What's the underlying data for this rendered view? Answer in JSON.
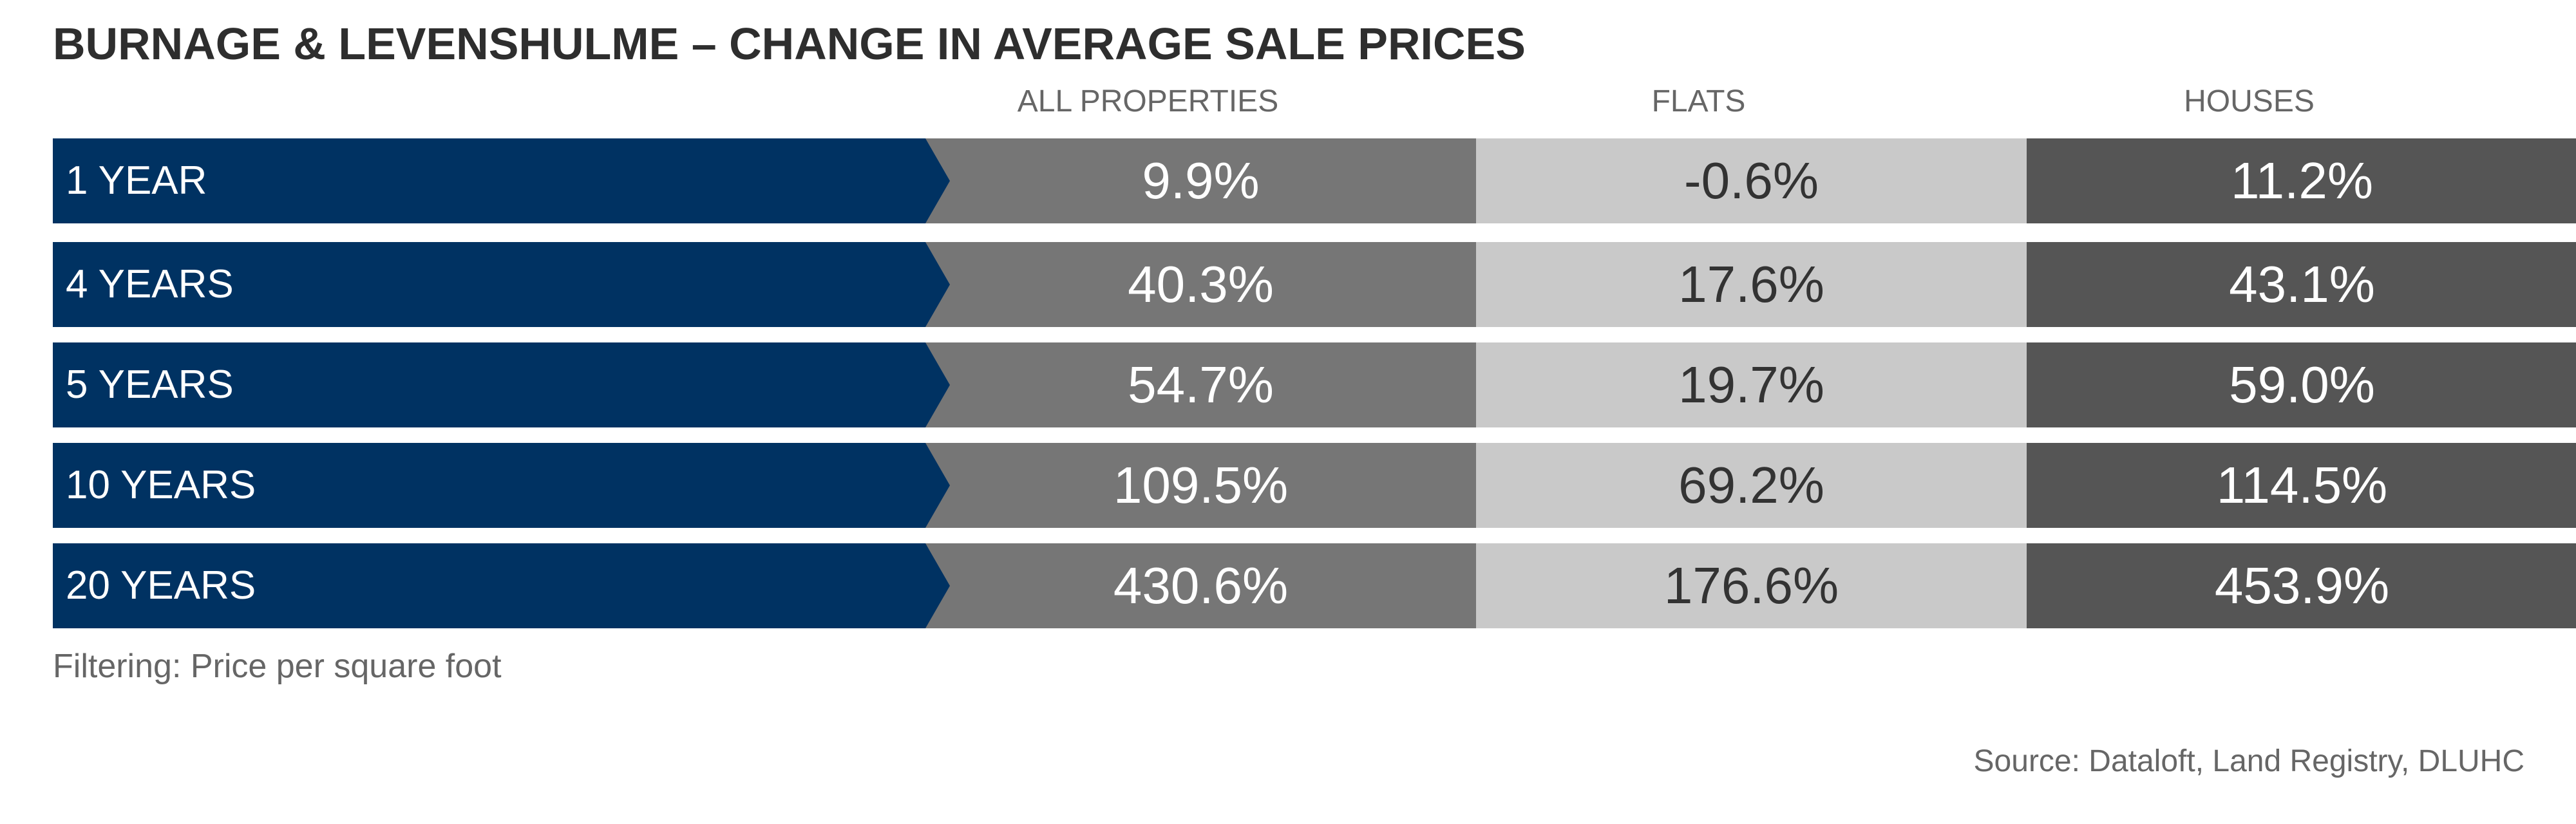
{
  "title": "BURNAGE & LEVENSHULME – CHANGE IN AVERAGE SALE PRICES",
  "note": "Filtering: Price per square foot",
  "source": "Source: Dataloft, Land Registry, DLUHC",
  "colors": {
    "row_label": "#003262",
    "all_properties": "#767676",
    "flats": "#c9c9c9",
    "houses": "#555555"
  },
  "chart_data": {
    "type": "table",
    "title": "BURNAGE & LEVENSHULME – CHANGE IN AVERAGE SALE PRICES",
    "columns": [
      "ALL PROPERTIES",
      "FLATS",
      "HOUSES"
    ],
    "rows": [
      {
        "label": "1 YEAR",
        "values": [
          "9.9%",
          "-0.6%",
          "11.2%"
        ]
      },
      {
        "label": "4 YEARS",
        "values": [
          "40.3%",
          "17.6%",
          "43.1%"
        ]
      },
      {
        "label": "5 YEARS",
        "values": [
          "54.7%",
          "19.7%",
          "59.0%"
        ]
      },
      {
        "label": "10 YEARS",
        "values": [
          "109.5%",
          "69.2%",
          "114.5%"
        ]
      },
      {
        "label": "20 YEARS",
        "values": [
          "430.6%",
          "176.6%",
          "453.9%"
        ]
      }
    ]
  }
}
